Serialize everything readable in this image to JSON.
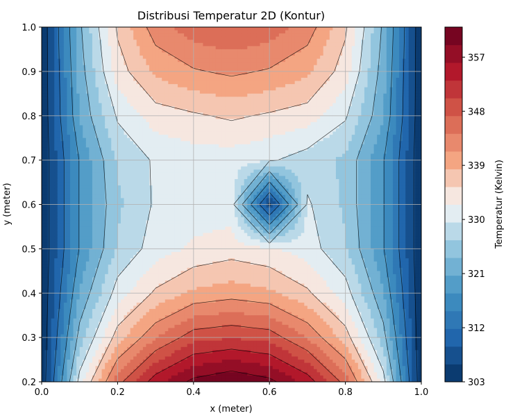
{
  "chart_data": {
    "type": "heatmap",
    "subtype": "filled-contour",
    "title": "Distribusi Temperatur 2D (Kontur)",
    "xlabel": "x (meter)",
    "ylabel": "y (meter)",
    "xlim": [
      0.0,
      1.0
    ],
    "ylim": [
      0.2,
      1.0
    ],
    "x_ticks": [
      "0.0",
      "0.2",
      "0.4",
      "0.6",
      "0.8",
      "1.0"
    ],
    "y_ticks": [
      "0.2",
      "0.3",
      "0.4",
      "0.5",
      "0.6",
      "0.7",
      "0.8",
      "0.9",
      "1.0"
    ],
    "grid": true,
    "colormap": "RdBu_r",
    "colorbar": {
      "label": "Temperatur (Kelvin)",
      "min": 303,
      "max": 362,
      "ticks": [
        "303",
        "312",
        "321",
        "330",
        "339",
        "348",
        "357"
      ],
      "levels": 20
    },
    "grid_x": [
      0.0,
      0.1,
      0.2,
      0.3,
      0.4,
      0.5,
      0.6,
      0.7,
      0.8,
      0.9,
      1.0
    ],
    "grid_y": [
      0.2,
      0.3,
      0.4,
      0.5,
      0.6,
      0.7,
      0.8,
      0.9,
      1.0
    ],
    "z": [
      [
        303,
        331,
        346,
        355,
        360,
        362,
        360,
        355,
        346,
        331,
        303
      ],
      [
        303,
        325,
        337,
        344,
        349,
        350,
        349,
        344,
        337,
        325,
        303
      ],
      [
        303,
        321,
        331,
        336,
        339,
        340,
        339,
        336,
        331,
        321,
        303
      ],
      [
        303,
        318,
        327,
        331,
        333,
        334,
        333,
        331,
        327,
        318,
        303
      ],
      [
        303,
        318,
        326,
        330,
        331,
        331,
        305,
        330,
        326,
        318,
        303
      ],
      [
        303,
        318,
        327,
        330,
        331,
        331,
        330,
        328,
        326,
        318,
        303
      ],
      [
        303,
        321,
        330,
        334,
        335,
        336,
        335,
        334,
        330,
        321,
        303
      ],
      [
        303,
        322,
        334,
        339,
        341,
        342,
        341,
        339,
        334,
        322,
        303
      ],
      [
        303,
        323,
        336,
        343,
        346,
        347,
        346,
        343,
        336,
        323,
        303
      ]
    ]
  }
}
